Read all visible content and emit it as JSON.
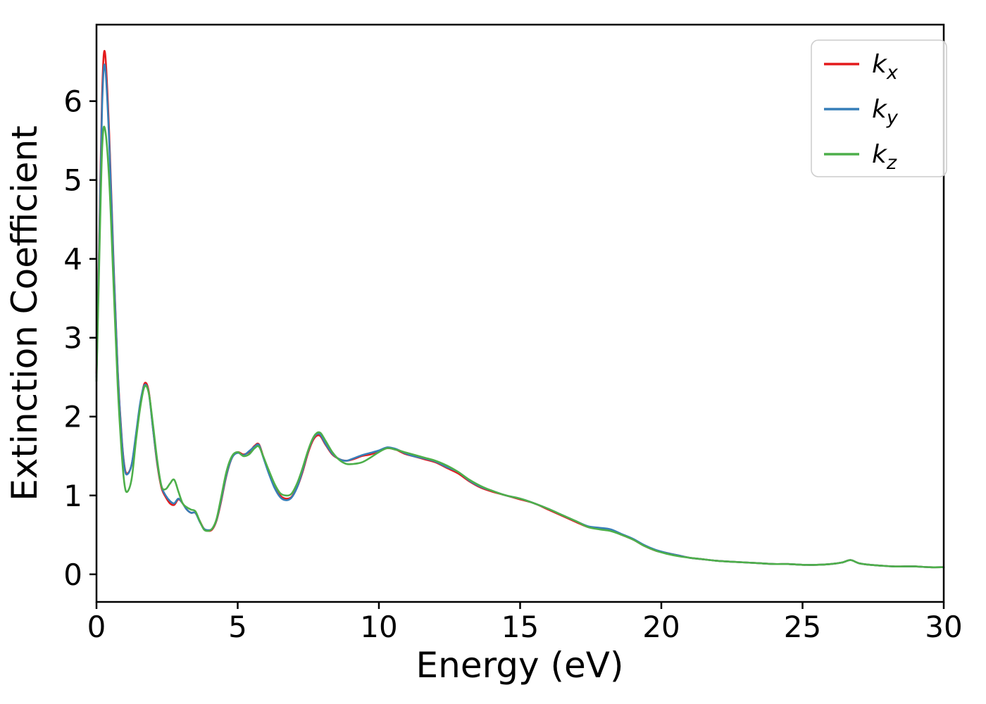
{
  "figure": {
    "background": "#ffffff"
  },
  "chart_data": {
    "type": "line",
    "title": "",
    "xlabel": "Energy (eV)",
    "ylabel": "Extinction Coefficient",
    "xlim": [
      0,
      30
    ],
    "ylim": [
      -0.35,
      6.97
    ],
    "xticks": [
      0,
      5,
      10,
      15,
      20,
      25,
      30
    ],
    "yticks": [
      0,
      1,
      2,
      3,
      4,
      5,
      6
    ],
    "grid": false,
    "legend": {
      "position": "upper-right",
      "items": [
        {
          "name": "kx",
          "label_base": "k",
          "label_sub": "x",
          "color": "#e41a1c"
        },
        {
          "name": "ky",
          "label_base": "k",
          "label_sub": "y",
          "color": "#377eb8"
        },
        {
          "name": "kz",
          "label_base": "k",
          "label_sub": "z",
          "color": "#4daf4a"
        }
      ]
    },
    "x": [
      0,
      0.1,
      0.2,
      0.3,
      0.45,
      0.6,
      0.75,
      0.9,
      1.0,
      1.1,
      1.25,
      1.4,
      1.55,
      1.7,
      1.85,
      2.0,
      2.15,
      2.3,
      2.45,
      2.6,
      2.75,
      2.9,
      3.05,
      3.2,
      3.35,
      3.5,
      3.65,
      3.8,
      3.95,
      4.1,
      4.25,
      4.4,
      4.6,
      4.8,
      5.0,
      5.2,
      5.4,
      5.6,
      5.75,
      5.9,
      6.1,
      6.3,
      6.5,
      6.7,
      6.9,
      7.1,
      7.3,
      7.5,
      7.7,
      7.9,
      8.1,
      8.35,
      8.6,
      8.85,
      9.1,
      9.4,
      9.7,
      10.0,
      10.3,
      10.6,
      10.9,
      11.2,
      11.6,
      12.0,
      12.4,
      12.8,
      13.2,
      13.6,
      14.0,
      14.5,
      15.0,
      15.5,
      16.0,
      16.5,
      17.0,
      17.4,
      17.8,
      18.2,
      18.6,
      19.0,
      19.4,
      19.8,
      20.2,
      20.6,
      21.0,
      21.5,
      22.0,
      22.5,
      23.0,
      23.5,
      24.0,
      24.5,
      25.0,
      25.5,
      26.0,
      26.4,
      26.7,
      27.0,
      27.4,
      27.8,
      28.2,
      28.6,
      29.0,
      29.5,
      30.0
    ],
    "series": [
      {
        "name": "kx",
        "color": "#e41a1c",
        "values": [
          2.55,
          4.3,
          6.1,
          6.62,
          5.6,
          4.0,
          2.6,
          1.7,
          1.35,
          1.28,
          1.4,
          1.75,
          2.15,
          2.42,
          2.32,
          1.85,
          1.4,
          1.1,
          0.98,
          0.9,
          0.88,
          0.95,
          0.9,
          0.82,
          0.78,
          0.78,
          0.68,
          0.58,
          0.55,
          0.57,
          0.68,
          0.9,
          1.25,
          1.48,
          1.55,
          1.52,
          1.55,
          1.63,
          1.65,
          1.5,
          1.3,
          1.12,
          1.0,
          0.96,
          0.98,
          1.1,
          1.3,
          1.55,
          1.72,
          1.76,
          1.65,
          1.52,
          1.46,
          1.44,
          1.46,
          1.5,
          1.52,
          1.56,
          1.6,
          1.58,
          1.53,
          1.5,
          1.46,
          1.42,
          1.35,
          1.28,
          1.18,
          1.1,
          1.05,
          1.0,
          0.95,
          0.9,
          0.82,
          0.74,
          0.66,
          0.6,
          0.58,
          0.56,
          0.5,
          0.44,
          0.36,
          0.3,
          0.27,
          0.24,
          0.21,
          0.19,
          0.17,
          0.16,
          0.15,
          0.14,
          0.13,
          0.13,
          0.12,
          0.12,
          0.13,
          0.15,
          0.18,
          0.14,
          0.12,
          0.11,
          0.1,
          0.1,
          0.1,
          0.09,
          0.09
        ]
      },
      {
        "name": "ky",
        "color": "#377eb8",
        "values": [
          2.5,
          4.2,
          5.95,
          6.45,
          5.5,
          3.95,
          2.58,
          1.68,
          1.33,
          1.27,
          1.4,
          1.78,
          2.18,
          2.4,
          2.3,
          1.85,
          1.42,
          1.12,
          1.0,
          0.93,
          0.9,
          0.96,
          0.9,
          0.82,
          0.78,
          0.78,
          0.67,
          0.58,
          0.56,
          0.58,
          0.69,
          0.92,
          1.26,
          1.48,
          1.54,
          1.51,
          1.56,
          1.62,
          1.64,
          1.49,
          1.28,
          1.1,
          0.98,
          0.94,
          0.97,
          1.1,
          1.32,
          1.57,
          1.74,
          1.78,
          1.66,
          1.53,
          1.46,
          1.44,
          1.47,
          1.51,
          1.54,
          1.57,
          1.61,
          1.59,
          1.54,
          1.5,
          1.47,
          1.43,
          1.36,
          1.3,
          1.19,
          1.11,
          1.06,
          1.0,
          0.96,
          0.9,
          0.83,
          0.75,
          0.67,
          0.61,
          0.59,
          0.57,
          0.51,
          0.45,
          0.37,
          0.31,
          0.27,
          0.24,
          0.21,
          0.19,
          0.17,
          0.16,
          0.15,
          0.14,
          0.13,
          0.13,
          0.12,
          0.12,
          0.13,
          0.15,
          0.18,
          0.14,
          0.12,
          0.11,
          0.1,
          0.1,
          0.1,
          0.09,
          0.09
        ]
      },
      {
        "name": "kz",
        "color": "#4daf4a",
        "values": [
          2.45,
          4.0,
          5.4,
          5.65,
          5.0,
          3.7,
          2.4,
          1.5,
          1.12,
          1.05,
          1.22,
          1.7,
          2.12,
          2.38,
          2.3,
          1.9,
          1.45,
          1.12,
          1.08,
          1.15,
          1.2,
          1.05,
          0.9,
          0.85,
          0.82,
          0.8,
          0.68,
          0.57,
          0.55,
          0.58,
          0.7,
          0.95,
          1.3,
          1.5,
          1.55,
          1.5,
          1.52,
          1.6,
          1.62,
          1.5,
          1.32,
          1.15,
          1.03,
          1.0,
          1.02,
          1.15,
          1.35,
          1.58,
          1.75,
          1.8,
          1.7,
          1.55,
          1.45,
          1.4,
          1.4,
          1.42,
          1.48,
          1.55,
          1.6,
          1.58,
          1.55,
          1.52,
          1.48,
          1.44,
          1.38,
          1.3,
          1.2,
          1.12,
          1.06,
          1.0,
          0.96,
          0.9,
          0.83,
          0.75,
          0.67,
          0.6,
          0.57,
          0.55,
          0.5,
          0.44,
          0.36,
          0.3,
          0.26,
          0.23,
          0.21,
          0.19,
          0.17,
          0.16,
          0.15,
          0.14,
          0.13,
          0.13,
          0.12,
          0.12,
          0.13,
          0.15,
          0.18,
          0.14,
          0.12,
          0.11,
          0.1,
          0.1,
          0.1,
          0.09,
          0.09
        ]
      }
    ]
  }
}
